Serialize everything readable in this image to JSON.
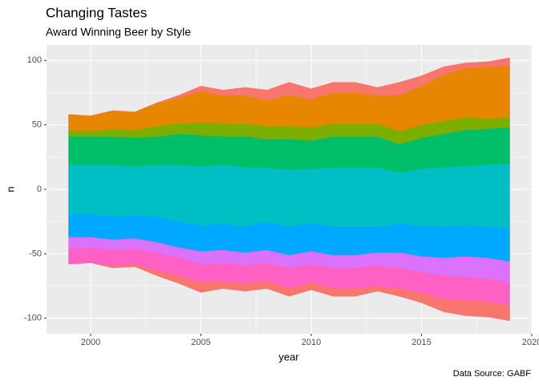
{
  "chart_data": {
    "type": "streamgraph",
    "title": "Changing Tastes",
    "subtitle": "Award Winning Beer by Style",
    "xlabel": "year",
    "ylabel": "n",
    "caption": "Data Source: GABF",
    "x": [
      1999,
      2000,
      2001,
      2002,
      2003,
      2004,
      2005,
      2006,
      2007,
      2008,
      2009,
      2010,
      2011,
      2012,
      2013,
      2014,
      2015,
      2016,
      2017,
      2018,
      2019
    ],
    "xlim": [
      1998,
      2020
    ],
    "xticks": [
      2000,
      2005,
      2010,
      2015,
      2020
    ],
    "ylim": [
      -112,
      112
    ],
    "yticks": [
      -100,
      -50,
      0,
      50,
      100
    ],
    "grid": true,
    "series": [
      {
        "color": "#F8766D",
        "values": [
          0,
          0,
          2,
          2,
          4,
          6,
          8,
          6,
          6,
          6,
          6,
          6,
          6,
          6,
          4,
          6,
          8,
          10,
          12,
          12,
          12
        ]
      },
      {
        "color": "#FF61C3",
        "values": [
          12,
          12,
          12,
          12,
          14,
          14,
          14,
          14,
          14,
          14,
          16,
          14,
          16,
          16,
          16,
          16,
          16,
          18,
          18,
          18,
          18
        ]
      },
      {
        "color": "#DB72FB",
        "values": [
          9,
          8,
          8,
          8,
          8,
          8,
          10,
          10,
          10,
          10,
          10,
          10,
          10,
          10,
          10,
          12,
          12,
          14,
          16,
          16,
          16
        ]
      },
      {
        "color": "#00A9FF",
        "values": [
          18,
          18,
          18,
          18,
          20,
          20,
          20,
          20,
          20,
          22,
          22,
          22,
          22,
          22,
          20,
          22,
          24,
          24,
          24,
          24,
          26
        ]
      },
      {
        "color": "#00BFC4",
        "values": [
          38,
          38,
          40,
          38,
          40,
          44,
          46,
          46,
          46,
          42,
          44,
          42,
          46,
          46,
          46,
          40,
          44,
          46,
          46,
          48,
          50
        ]
      },
      {
        "color": "#00BE67",
        "values": [
          22,
          22,
          22,
          22,
          22,
          24,
          24,
          22,
          24,
          22,
          24,
          22,
          24,
          24,
          24,
          22,
          24,
          26,
          28,
          28,
          28
        ]
      },
      {
        "color": "#7CAE00",
        "values": [
          5,
          4,
          6,
          6,
          8,
          8,
          10,
          10,
          10,
          10,
          10,
          10,
          10,
          10,
          10,
          10,
          10,
          10,
          10,
          8,
          8
        ]
      },
      {
        "color": "#E58700",
        "values": [
          12,
          12,
          14,
          14,
          18,
          20,
          24,
          22,
          22,
          20,
          24,
          22,
          24,
          24,
          22,
          28,
          30,
          36,
          38,
          40,
          40
        ]
      },
      {
        "color": "#F8766D",
        "values": [
          0,
          0,
          0,
          0,
          0,
          2,
          4,
          4,
          6,
          8,
          10,
          8,
          8,
          8,
          6,
          10,
          8,
          6,
          4,
          4,
          6
        ]
      }
    ]
  }
}
